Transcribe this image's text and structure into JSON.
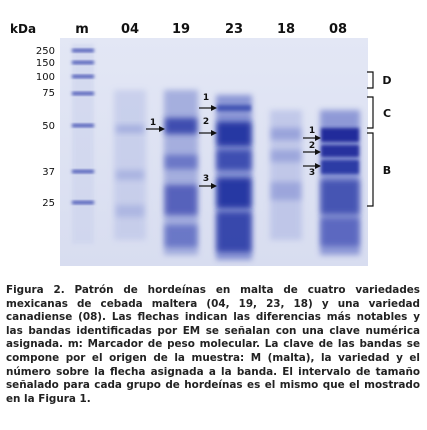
{
  "figure": {
    "kda_label": "kDa",
    "lane_labels": [
      "m",
      "04",
      "19",
      "23",
      "18",
      "08"
    ],
    "mw_markers": [
      "250",
      "150",
      "100",
      "75",
      "50",
      "37",
      "25"
    ],
    "arrow_labels": {
      "lane19": [
        "1"
      ],
      "lane23": [
        "1",
        "2",
        "3"
      ],
      "lane08": [
        "1",
        "2",
        "3"
      ]
    },
    "group_labels": [
      "D",
      "C",
      "B"
    ]
  },
  "caption": {
    "text": "Figura 2. Patrón de hordeínas en malta de cuatro variedades mexicanas de cebada maltera (04, 19, 23, 18) y una variedad canadiense (08). Las flechas indican las diferencias más notables y las bandas identificadas por EM se señalan con una clave numérica asignada. m: Marcador de peso molecular. La clave de las bandas se compone por el origen de la muestra: M (malta), la variedad y el número sobre la flecha asignada a la banda. El intervalo de tamaño señalado para cada grupo de hordeínas es el mismo que el mostrado en la Figura 1."
  },
  "colors": {
    "gel_background": "#dfe4f3",
    "band_blue": "#2f3fae",
    "text": "#111111"
  }
}
